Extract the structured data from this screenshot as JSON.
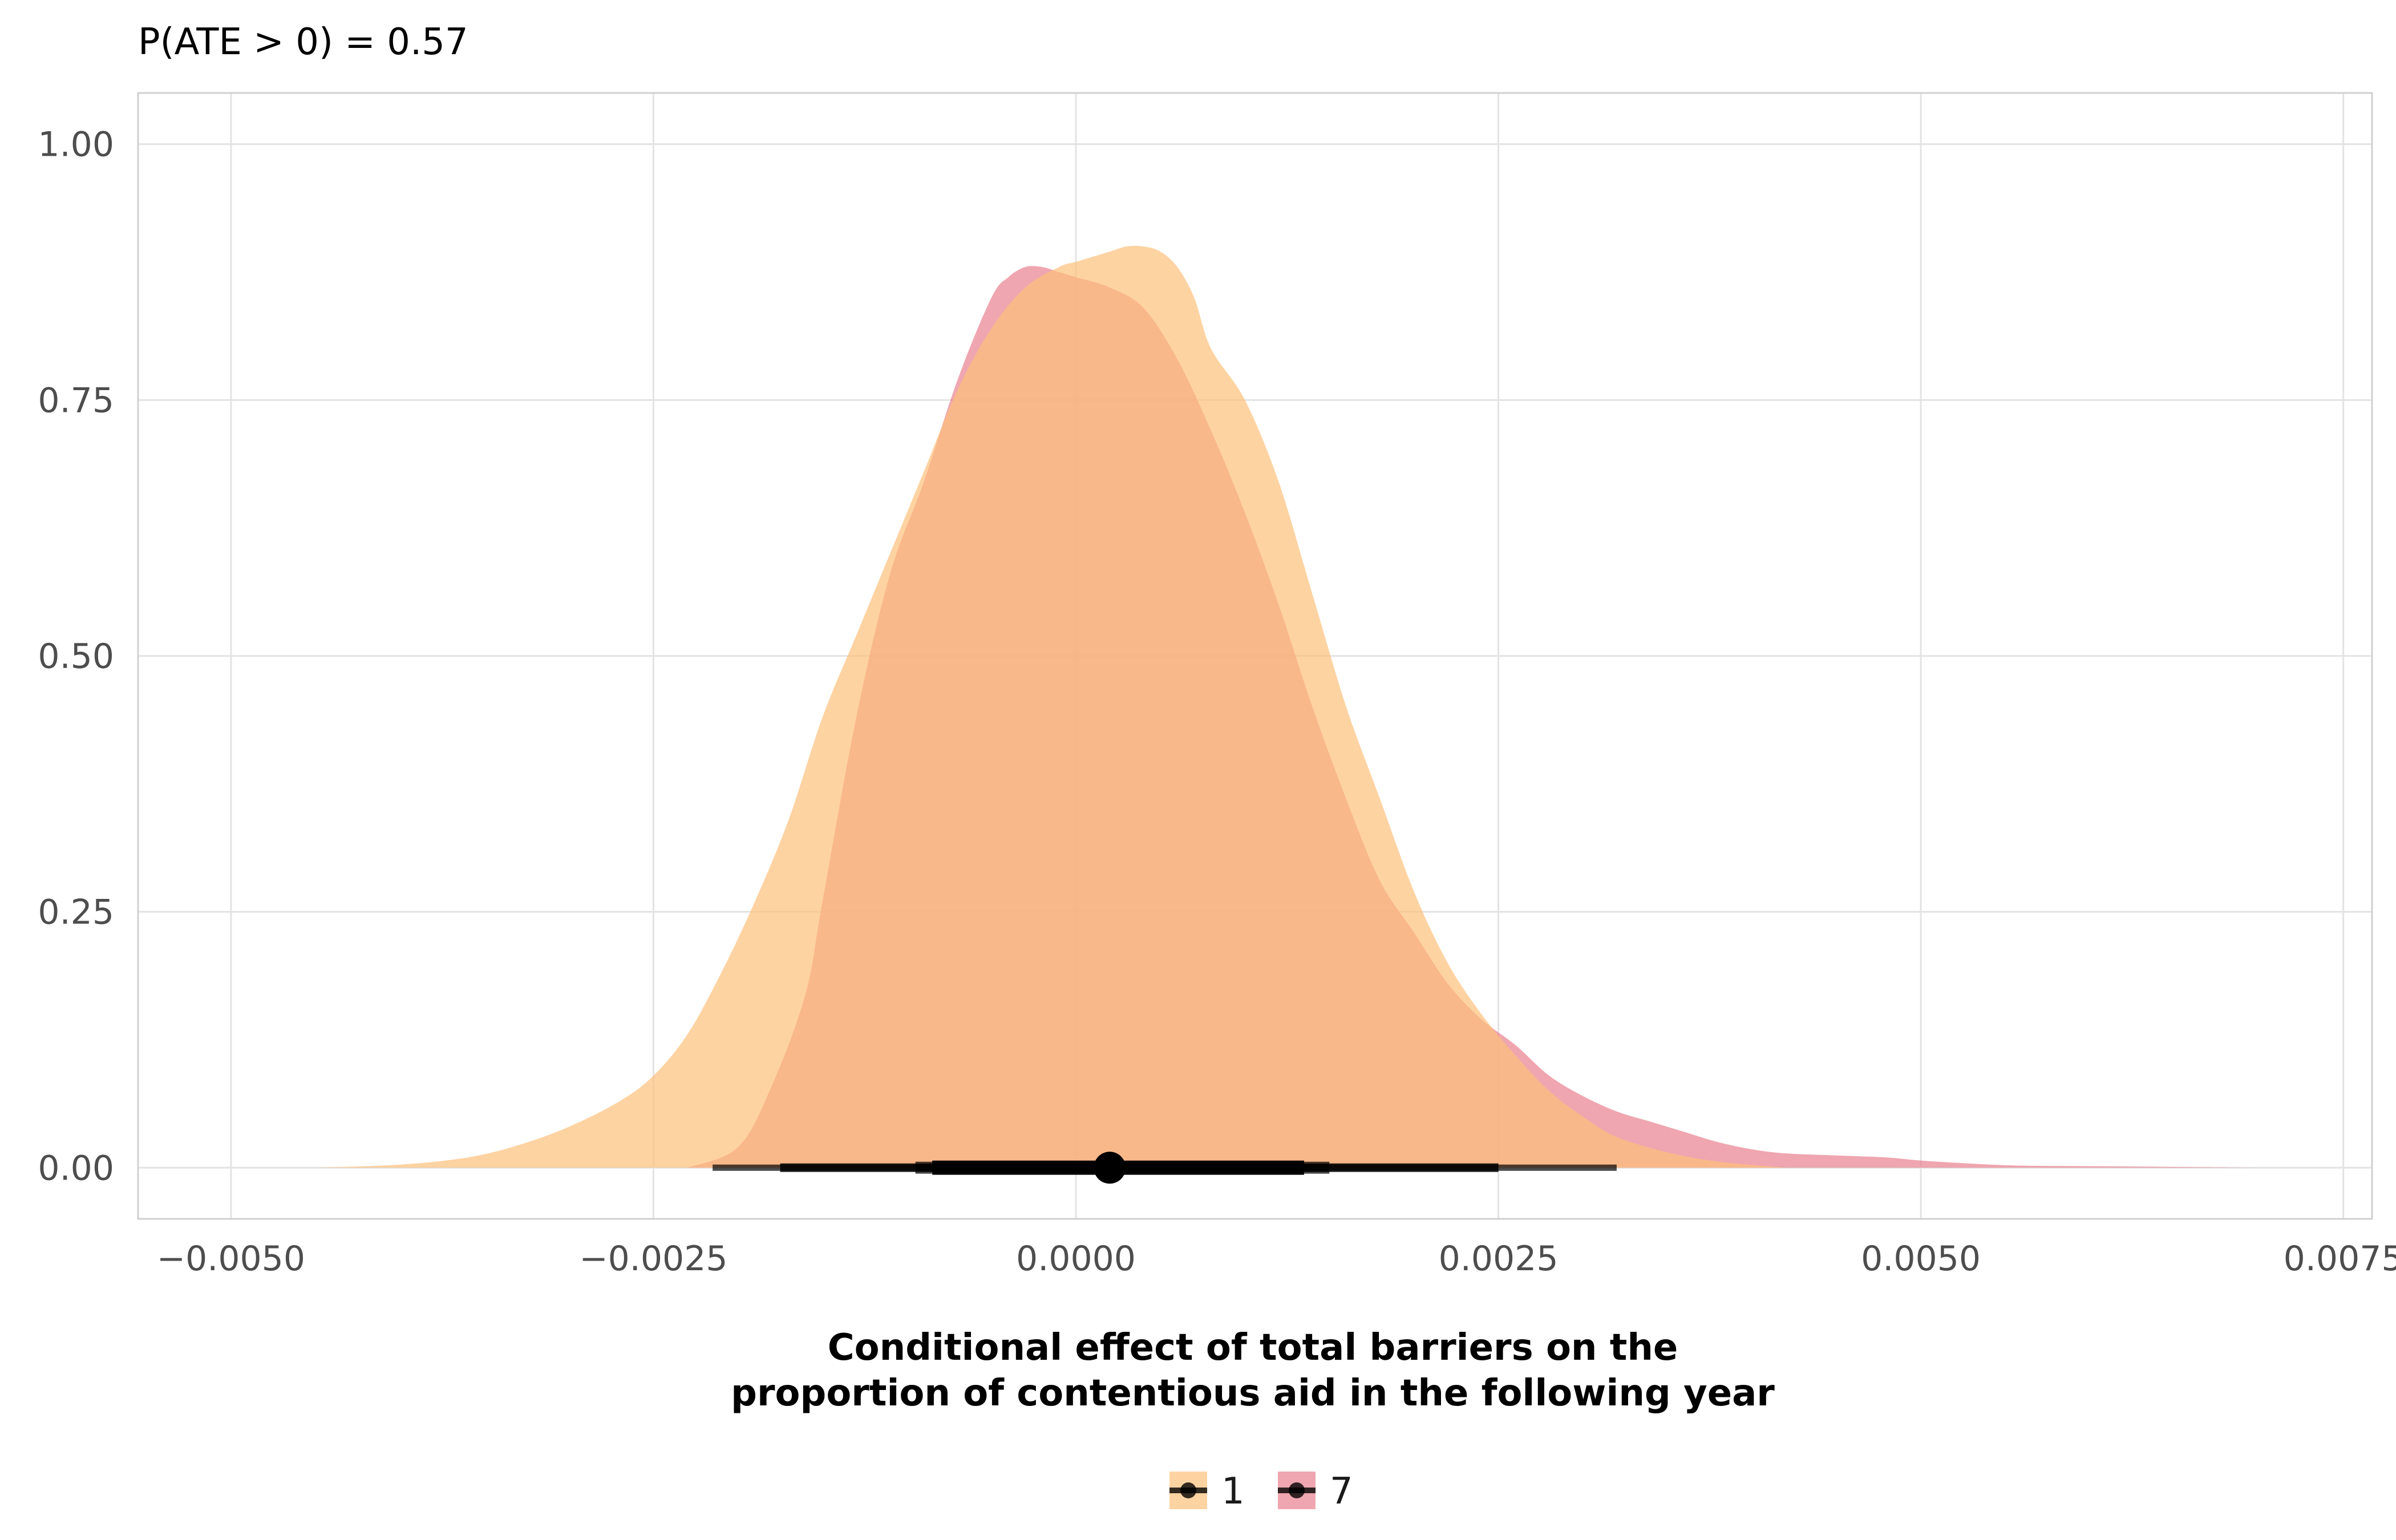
{
  "chart_data": {
    "type": "area",
    "title": "P(ATE > 0) = 0.57",
    "xlabel_lines": [
      "Conditional effect of total barriers on the",
      "proportion of contentious aid in the following year"
    ],
    "ylabel": "",
    "xlim": [
      -0.00555,
      0.00767
    ],
    "ylim": [
      -0.05,
      1.05
    ],
    "x_ticks": [
      -0.005,
      -0.0025,
      0.0,
      0.0025,
      0.005,
      0.0075
    ],
    "x_tick_labels": [
      "−0.0050",
      "−0.0025",
      "0.0000",
      "0.0025",
      "0.0050",
      "0.0075"
    ],
    "y_ticks": [
      0.0,
      0.25,
      0.5,
      0.75,
      1.0
    ],
    "y_tick_labels": [
      "0.00",
      "0.25",
      "0.50",
      "0.75",
      "1.00"
    ],
    "grid": true,
    "legend_position": "bottom",
    "series": [
      {
        "name": "7",
        "color": "#e8808f",
        "opacity": 0.7,
        "x": [
          -0.0023,
          -0.002,
          -0.0018,
          -0.0016,
          -0.0015,
          -0.0013,
          -0.0011,
          -0.0009,
          -0.0007,
          -0.0005,
          -0.0004,
          -0.0003,
          -0.0002,
          -0.0001,
          0.0,
          0.0002,
          0.0004,
          0.0006,
          0.0008,
          0.001,
          0.0012,
          0.0014,
          0.0016,
          0.0018,
          0.002,
          0.0022,
          0.0024,
          0.0026,
          0.0028,
          0.003,
          0.0032,
          0.0034,
          0.0036,
          0.0038,
          0.004,
          0.0042,
          0.0045,
          0.0048,
          0.005,
          0.0053,
          0.0056,
          0.006,
          0.0065,
          0.007
        ],
        "y": [
          0.0,
          0.02,
          0.08,
          0.17,
          0.26,
          0.44,
          0.58,
          0.67,
          0.77,
          0.85,
          0.87,
          0.88,
          0.88,
          0.875,
          0.87,
          0.86,
          0.84,
          0.79,
          0.72,
          0.64,
          0.55,
          0.45,
          0.36,
          0.28,
          0.23,
          0.18,
          0.145,
          0.12,
          0.09,
          0.07,
          0.055,
          0.045,
          0.035,
          0.025,
          0.018,
          0.014,
          0.012,
          0.01,
          0.007,
          0.004,
          0.002,
          0.0015,
          0.0008,
          0.0
        ]
      },
      {
        "name": "1",
        "color": "#fdc17a",
        "opacity": 0.7,
        "x": [
          -0.0045,
          -0.004,
          -0.0036,
          -0.0033,
          -0.003,
          -0.0027,
          -0.0025,
          -0.0023,
          -0.0021,
          -0.0019,
          -0.0017,
          -0.0015,
          -0.0013,
          -0.0011,
          -0.0009,
          -0.0007,
          -0.0005,
          -0.0003,
          -0.0001,
          0.0,
          0.0001,
          0.0002,
          0.0003,
          0.0004,
          0.0005,
          0.0006,
          0.0007,
          0.0008,
          0.001,
          0.0012,
          0.0014,
          0.0016,
          0.0018,
          0.002,
          0.0022,
          0.0024,
          0.0026,
          0.0028,
          0.003,
          0.0032,
          0.0035,
          0.0038,
          0.0042
        ],
        "y": [
          0.0,
          0.003,
          0.01,
          0.022,
          0.04,
          0.065,
          0.09,
          0.13,
          0.19,
          0.26,
          0.34,
          0.44,
          0.52,
          0.6,
          0.68,
          0.76,
          0.82,
          0.86,
          0.88,
          0.885,
          0.89,
          0.895,
          0.9,
          0.9,
          0.895,
          0.88,
          0.85,
          0.8,
          0.75,
          0.67,
          0.56,
          0.45,
          0.36,
          0.27,
          0.2,
          0.15,
          0.11,
          0.075,
          0.05,
          0.03,
          0.015,
          0.006,
          0.0
        ]
      }
    ],
    "interval": {
      "color": "#000000",
      "point": 0.0002,
      "segments": [
        {
          "lo": -0.00215,
          "hi": 0.0032,
          "opacity": 0.7
        },
        {
          "lo": -0.00175,
          "hi": 0.0025,
          "opacity": 0.85
        },
        {
          "lo": -0.00095,
          "hi": 0.0015,
          "opacity": 0.7
        },
        {
          "lo": -0.00085,
          "hi": 0.00135,
          "opacity": 0.95
        }
      ]
    },
    "legend": [
      {
        "label": "1",
        "color": "#fdc17a"
      },
      {
        "label": "7",
        "color": "#e8808f"
      }
    ]
  }
}
